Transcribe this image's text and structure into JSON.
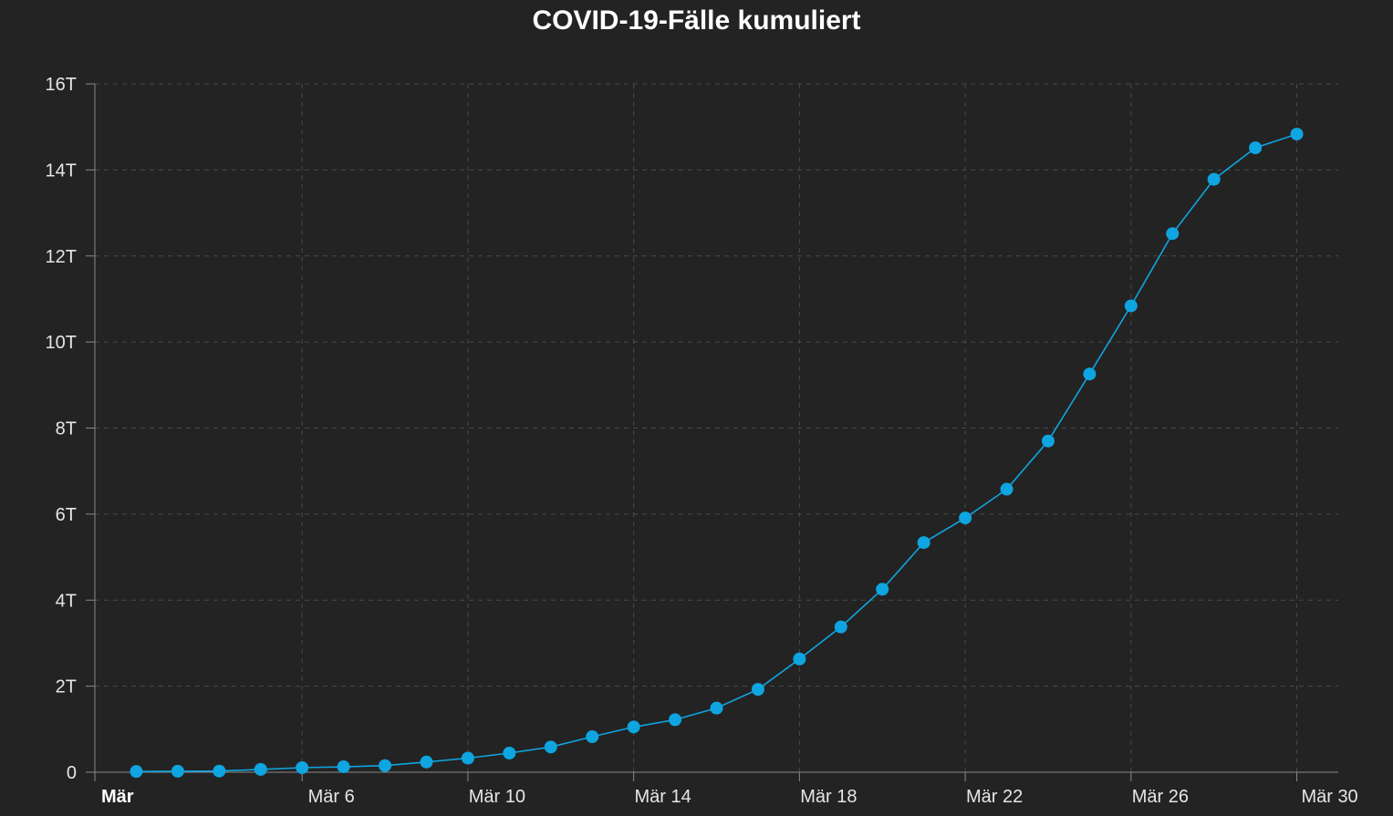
{
  "chart_data": {
    "type": "line",
    "title": "COVID-19-Fälle kumuliert",
    "xlabel": "",
    "ylabel": "",
    "ylim": [
      0,
      16000
    ],
    "y_ticks": [
      {
        "value": 0,
        "label": "0"
      },
      {
        "value": 2000,
        "label": "2T"
      },
      {
        "value": 4000,
        "label": "4T"
      },
      {
        "value": 6000,
        "label": "6T"
      },
      {
        "value": 8000,
        "label": "8T"
      },
      {
        "value": 10000,
        "label": "10T"
      },
      {
        "value": 12000,
        "label": "12T"
      },
      {
        "value": 14000,
        "label": "14T"
      },
      {
        "value": 16000,
        "label": "16T"
      }
    ],
    "x_range": [
      "2020-03-01",
      "2020-03-31"
    ],
    "x_ticks": [
      {
        "date": "2020-03-01",
        "label": "Mär",
        "bold": true
      },
      {
        "date": "2020-03-06",
        "label": "Mär 6",
        "bold": false
      },
      {
        "date": "2020-03-10",
        "label": "Mär 10",
        "bold": false
      },
      {
        "date": "2020-03-14",
        "label": "Mär 14",
        "bold": false
      },
      {
        "date": "2020-03-18",
        "label": "Mär 18",
        "bold": false
      },
      {
        "date": "2020-03-22",
        "label": "Mär 22",
        "bold": false
      },
      {
        "date": "2020-03-26",
        "label": "Mär 26",
        "bold": false
      },
      {
        "date": "2020-03-30",
        "label": "Mär 30",
        "bold": false
      }
    ],
    "grid": true,
    "series": [
      {
        "color": "#0ea5e0",
        "x": [
          "2020-03-02",
          "2020-03-03",
          "2020-03-04",
          "2020-03-05",
          "2020-03-06",
          "2020-03-07",
          "2020-03-08",
          "2020-03-09",
          "2020-03-10",
          "2020-03-11",
          "2020-03-12",
          "2020-03-13",
          "2020-03-14",
          "2020-03-15",
          "2020-03-16",
          "2020-03-17",
          "2020-03-18",
          "2020-03-19",
          "2020-03-20",
          "2020-03-21",
          "2020-03-22",
          "2020-03-23",
          "2020-03-24",
          "2020-03-25",
          "2020-03-26",
          "2020-03-27",
          "2020-03-28",
          "2020-03-29",
          "2020-03-30"
        ],
        "values": [
          18,
          24,
          27,
          66,
          105,
          126,
          154,
          238,
          328,
          445,
          586,
          826,
          1052,
          1221,
          1491,
          1926,
          2632,
          3377,
          4254,
          5338,
          5911,
          6579,
          7699,
          9256,
          10841,
          12520,
          13782,
          14514,
          14833
        ]
      }
    ]
  }
}
